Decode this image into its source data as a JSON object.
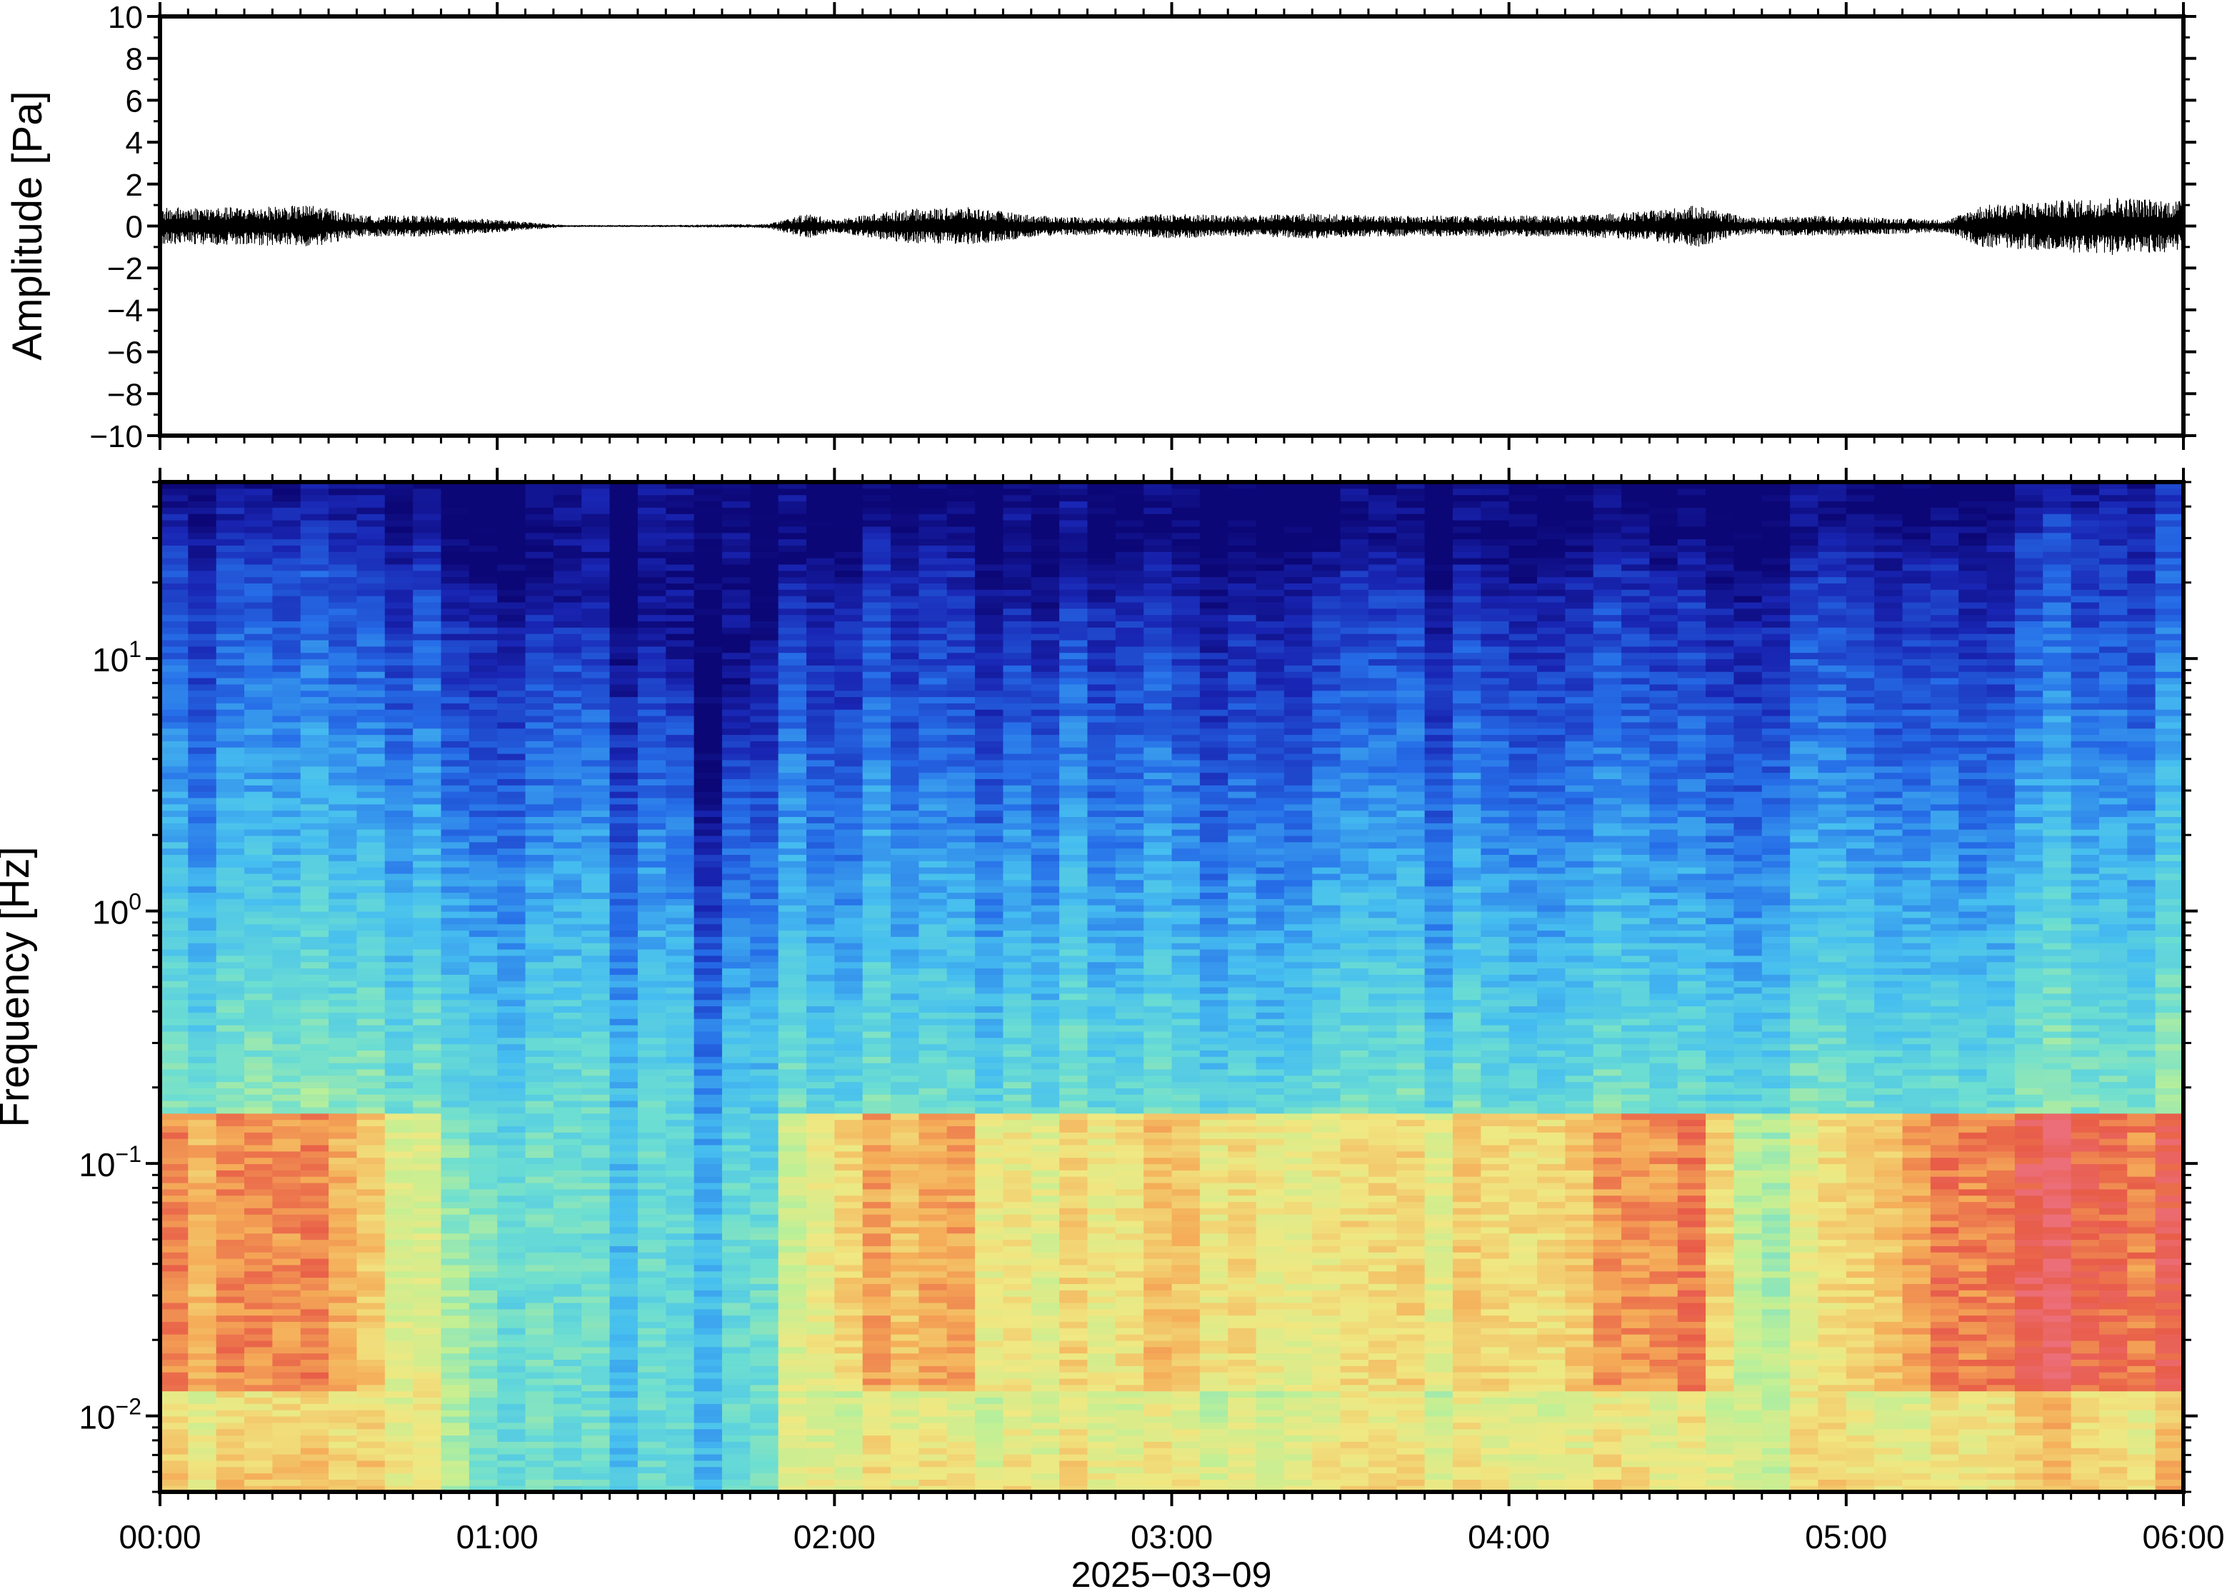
{
  "chart_data": [
    {
      "type": "line",
      "ylabel": "Amplitude [Pa]",
      "ylim": [
        -10,
        10
      ],
      "yticks": [
        "10",
        "8",
        "6",
        "4",
        "2",
        "0",
        "−2",
        "−4",
        "−6",
        "−8",
        "−10"
      ],
      "ytick_values": [
        10,
        8,
        6,
        4,
        2,
        0,
        -2,
        -4,
        -6,
        -8,
        -10
      ],
      "xlim_hours": [
        0,
        6
      ],
      "series": [
        {
          "color": "#000000",
          "envelope_hours": [
            0.0,
            0.25,
            0.45,
            0.6,
            0.8,
            1.0,
            1.2,
            1.5,
            1.8,
            1.92,
            2.0,
            2.2,
            2.4,
            2.6,
            2.8,
            3.0,
            3.2,
            3.4,
            3.6,
            3.8,
            4.0,
            4.2,
            4.4,
            4.56,
            4.7,
            4.9,
            5.1,
            5.3,
            5.4,
            5.6,
            5.8,
            6.0
          ],
          "envelope_amplitude_pa": [
            0.9,
            0.9,
            1.0,
            0.5,
            0.5,
            0.3,
            0.05,
            0.05,
            0.1,
            0.6,
            0.3,
            0.8,
            0.9,
            0.5,
            0.4,
            0.6,
            0.5,
            0.6,
            0.5,
            0.5,
            0.5,
            0.5,
            0.7,
            1.0,
            0.4,
            0.5,
            0.4,
            0.3,
            1.0,
            1.2,
            1.4,
            1.2
          ]
        }
      ]
    },
    {
      "type": "heatmap",
      "ylabel": "Frequency [Hz]",
      "xlabel": "2025−03−09",
      "yscale": "log",
      "ylim_hz": [
        0.005,
        50
      ],
      "yticks": [
        {
          "base": "10",
          "exp": "1",
          "value": 10
        },
        {
          "base": "10",
          "exp": "0",
          "value": 1
        },
        {
          "base": "10",
          "exp": "−1",
          "value": 0.1
        },
        {
          "base": "10",
          "exp": "−2",
          "value": 0.01
        }
      ],
      "xticks": [
        "00:00",
        "01:00",
        "02:00",
        "03:00",
        "04:00",
        "05:00",
        "06:00"
      ],
      "xlim_hours": [
        0,
        6
      ],
      "colormap": "rainbow (jet-like): dark blue low power → cyan → yellow → red high power",
      "time_bins_hours": [
        0.0,
        0.5,
        1.0,
        1.25,
        1.5,
        1.65,
        1.8,
        2.0,
        2.4,
        2.5,
        2.85,
        3.0,
        3.5,
        4.0,
        4.2,
        4.55,
        4.75,
        5.0,
        5.3,
        5.6,
        6.0
      ],
      "upper_power_edge_hz": [
        26,
        26,
        14,
        9,
        7,
        0.7,
        9,
        18,
        22,
        10,
        16,
        14,
        18,
        12,
        18,
        18,
        12,
        20,
        22,
        32,
        40
      ],
      "dominant_low_frequency_level": [
        0.85,
        0.82,
        0.45,
        0.35,
        0.35,
        0.3,
        0.45,
        0.78,
        0.85,
        0.65,
        0.72,
        0.78,
        0.7,
        0.72,
        0.78,
        0.9,
        0.55,
        0.72,
        0.92,
        0.95,
        0.9
      ]
    }
  ]
}
